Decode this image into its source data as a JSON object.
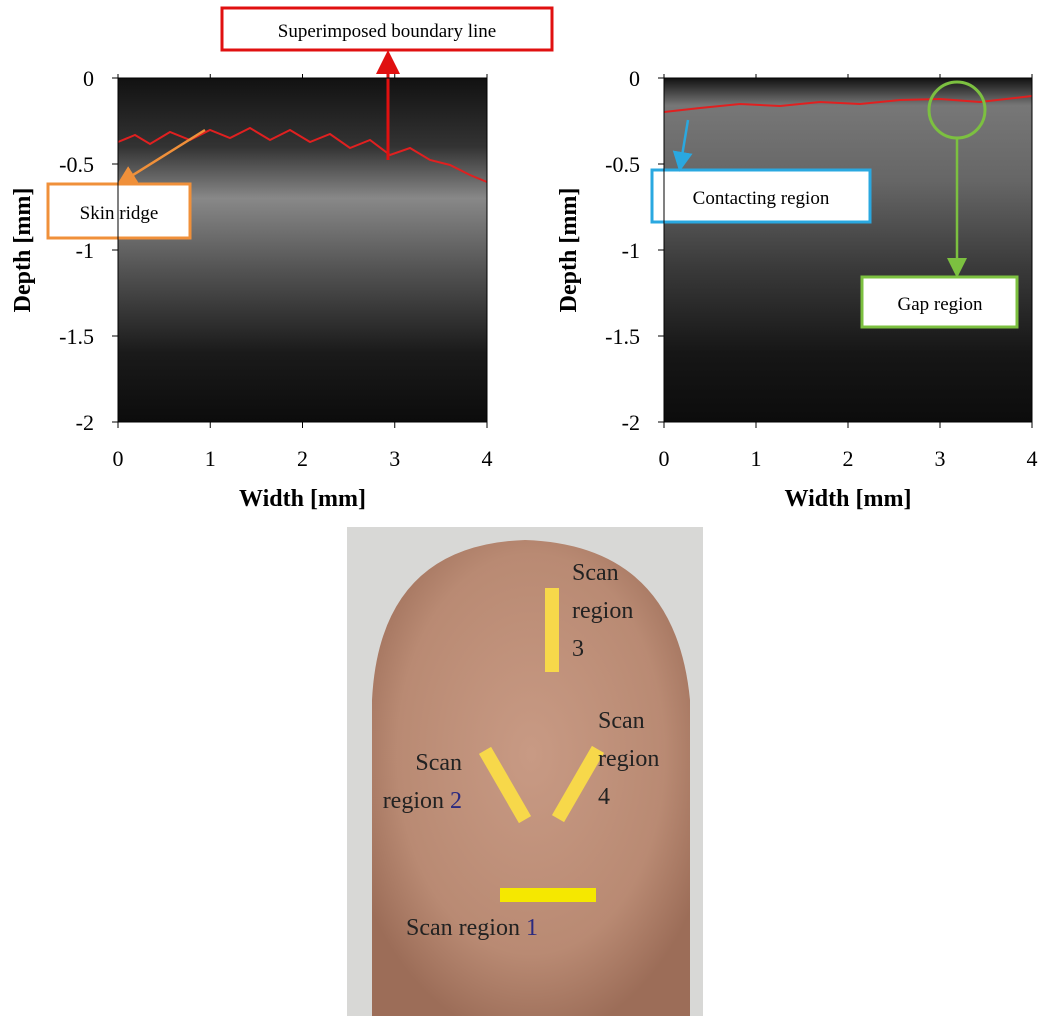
{
  "panels": [
    {
      "xlabel": "Width [mm]",
      "ylabel": "Depth [mm]",
      "xlim": [
        0,
        4
      ],
      "ylim": [
        -2,
        0
      ],
      "xticks": [
        0,
        1,
        2,
        3,
        4
      ],
      "yticks": [
        0,
        -0.5,
        -1,
        -1.5,
        -2
      ],
      "annotations": [
        "Superimposed boundary line",
        "Skin ridge"
      ]
    },
    {
      "xlabel": "Width [mm]",
      "ylabel": "Depth [mm]",
      "xlim": [
        0,
        4
      ],
      "ylim": [
        -2,
        0
      ],
      "xticks": [
        0,
        1,
        2,
        3,
        4
      ],
      "yticks": [
        0,
        -0.5,
        -1,
        -1.5,
        -2
      ],
      "annotations": [
        "Contacting region",
        "Gap region"
      ]
    }
  ],
  "photo": {
    "regions": [
      {
        "lines": [
          "Scan region"
        ],
        "number": "1"
      },
      {
        "lines": [
          "Scan",
          "region"
        ],
        "number": "2"
      },
      {
        "lines": [
          "Scan",
          "region"
        ],
        "number": "3"
      },
      {
        "lines": [
          "Scan",
          "region"
        ],
        "number": "4"
      }
    ]
  }
}
